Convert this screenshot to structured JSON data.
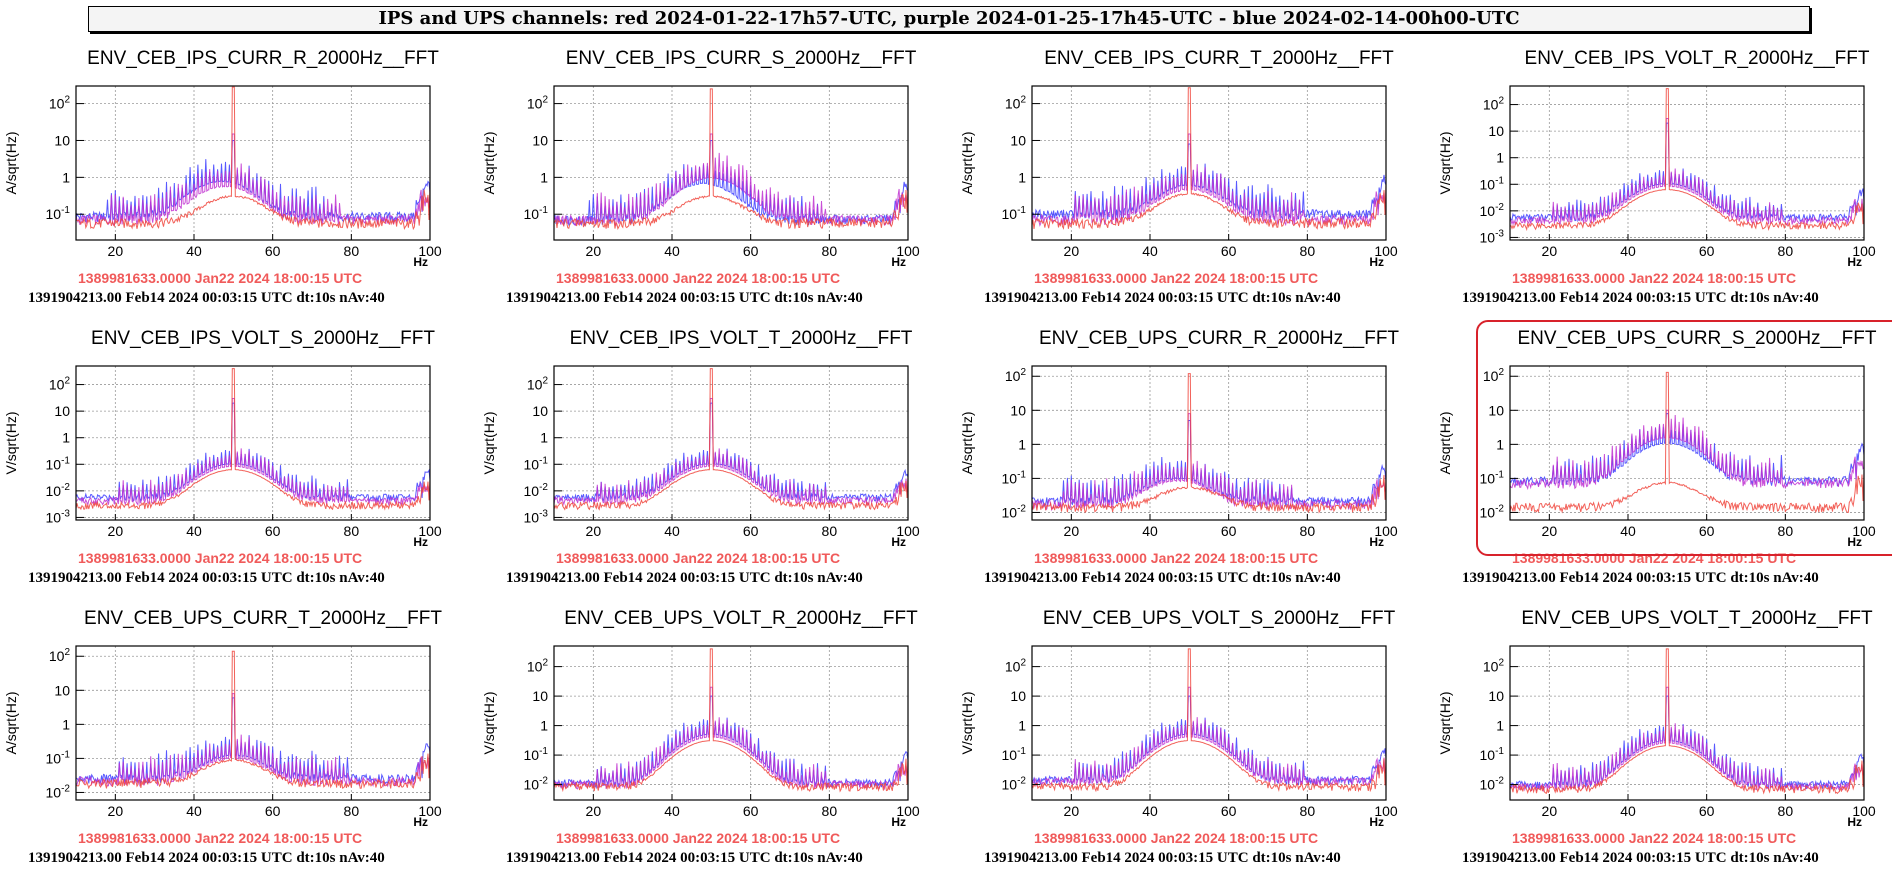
{
  "banner": "IPS and UPS channels: red 2024-01-22-17h57-UTC, purple 2024-01-25-17h45-UTC - blue 2024-02-14-00h00-UTC",
  "colors": {
    "red": "#f0453c",
    "blue": "#3c3cff",
    "purple": "#c030d0",
    "grid": "#9a9a9a",
    "highlight": "#d8222b",
    "footer_red": "#f05a5a"
  },
  "panel_footer": {
    "red": "1389981633.0000 Jan22 2024 18:00:15 UTC",
    "black": "1391904213.00 Feb14 2024 00:03:15 UTC dt:10s nAv:40"
  },
  "chart_data": [
    {
      "type": "line",
      "title": "ENV_CEB_IPS_CURR_R_2000Hz__FFT",
      "ylabel": "A/sqrt(Hz)",
      "xlabel": "Hz",
      "log_y": true,
      "xlim": [
        10,
        100
      ],
      "ylim": [
        0.02,
        300
      ],
      "x_ticks": [
        20,
        40,
        60,
        80,
        100
      ],
      "y_ticks": [
        "10^-1",
        "1",
        "10",
        "10^2"
      ],
      "grid": true,
      "peak_x": 50,
      "series": [
        {
          "color": "blue",
          "baseline": 0.06,
          "hump_x": 47,
          "hump_peak": 0.7,
          "peak": 10
        },
        {
          "color": "purple",
          "baseline": 0.05,
          "hump_x": 48,
          "hump_peak": 0.5,
          "peak": 15
        },
        {
          "color": "red",
          "baseline": 0.04,
          "hump_x": 50,
          "hump_peak": 0.25,
          "peak": 280
        }
      ]
    },
    {
      "type": "line",
      "title": "ENV_CEB_IPS_CURR_S_2000Hz__FFT",
      "ylabel": "A/sqrt(Hz)",
      "xlabel": "Hz",
      "log_y": true,
      "xlim": [
        10,
        100
      ],
      "ylim": [
        0.02,
        300
      ],
      "x_ticks": [
        20,
        40,
        60,
        80,
        100
      ],
      "y_ticks": [
        "10^-1",
        "1",
        "10",
        "10^2"
      ],
      "grid": true,
      "peak_x": 50,
      "series": [
        {
          "color": "blue",
          "baseline": 0.05,
          "hump_x": 48,
          "hump_peak": 0.6,
          "peak": 10
        },
        {
          "color": "purple",
          "baseline": 0.05,
          "hump_x": 50,
          "hump_peak": 0.9,
          "peak": 15
        },
        {
          "color": "red",
          "baseline": 0.04,
          "hump_x": 50,
          "hump_peak": 0.25,
          "peak": 250
        }
      ]
    },
    {
      "type": "line",
      "title": "ENV_CEB_IPS_CURR_T_2000Hz__FFT",
      "ylabel": "A/sqrt(Hz)",
      "xlabel": "Hz",
      "log_y": true,
      "xlim": [
        10,
        100
      ],
      "ylim": [
        0.02,
        300
      ],
      "x_ticks": [
        20,
        40,
        60,
        80,
        100
      ],
      "y_ticks": [
        "10^-1",
        "1",
        "10",
        "10^2"
      ],
      "grid": true,
      "peak_x": 50,
      "series": [
        {
          "color": "blue",
          "baseline": 0.07,
          "hump_x": 50,
          "hump_peak": 0.5,
          "peak": 8
        },
        {
          "color": "purple",
          "baseline": 0.05,
          "hump_x": 50,
          "hump_peak": 0.4,
          "peak": 15
        },
        {
          "color": "red",
          "baseline": 0.04,
          "hump_x": 50,
          "hump_peak": 0.3,
          "peak": 270
        }
      ]
    },
    {
      "type": "line",
      "title": "ENV_CEB_IPS_VOLT_R_2000Hz__FFT",
      "ylabel": "V/sqrt(Hz)",
      "xlabel": "Hz",
      "log_y": true,
      "xlim": [
        10,
        100
      ],
      "ylim": [
        0.0008,
        500
      ],
      "x_ticks": [
        20,
        40,
        60,
        80,
        100
      ],
      "y_ticks": [
        "10^-3",
        "10^-2",
        "10^-1",
        "1",
        "10",
        "10^2"
      ],
      "grid": true,
      "peak_x": 50,
      "series": [
        {
          "color": "blue",
          "baseline": 0.004,
          "hump_x": 50,
          "hump_peak": 0.1,
          "peak": 20
        },
        {
          "color": "purple",
          "baseline": 0.003,
          "hump_x": 50,
          "hump_peak": 0.08,
          "peak": 30
        },
        {
          "color": "red",
          "baseline": 0.002,
          "hump_x": 50,
          "hump_peak": 0.06,
          "peak": 400
        }
      ]
    },
    {
      "type": "line",
      "title": "ENV_CEB_IPS_VOLT_S_2000Hz__FFT",
      "ylabel": "V/sqrt(Hz)",
      "xlabel": "Hz",
      "log_y": true,
      "xlim": [
        10,
        100
      ],
      "ylim": [
        0.0008,
        500
      ],
      "x_ticks": [
        20,
        40,
        60,
        80,
        100
      ],
      "y_ticks": [
        "10^-3",
        "10^-2",
        "10^-1",
        "1",
        "10",
        "10^2"
      ],
      "grid": true,
      "peak_x": 50,
      "series": [
        {
          "color": "blue",
          "baseline": 0.004,
          "hump_x": 50,
          "hump_peak": 0.1,
          "peak": 20
        },
        {
          "color": "purple",
          "baseline": 0.003,
          "hump_x": 50,
          "hump_peak": 0.08,
          "peak": 30
        },
        {
          "color": "red",
          "baseline": 0.002,
          "hump_x": 50,
          "hump_peak": 0.06,
          "peak": 400
        }
      ]
    },
    {
      "type": "line",
      "title": "ENV_CEB_IPS_VOLT_T_2000Hz__FFT",
      "ylabel": "V/sqrt(Hz)",
      "xlabel": "Hz",
      "log_y": true,
      "xlim": [
        10,
        100
      ],
      "ylim": [
        0.0008,
        500
      ],
      "x_ticks": [
        20,
        40,
        60,
        80,
        100
      ],
      "y_ticks": [
        "10^-3",
        "10^-2",
        "10^-1",
        "1",
        "10",
        "10^2"
      ],
      "grid": true,
      "peak_x": 50,
      "series": [
        {
          "color": "blue",
          "baseline": 0.004,
          "hump_x": 50,
          "hump_peak": 0.1,
          "peak": 20
        },
        {
          "color": "purple",
          "baseline": 0.003,
          "hump_x": 50,
          "hump_peak": 0.08,
          "peak": 30
        },
        {
          "color": "red",
          "baseline": 0.002,
          "hump_x": 50,
          "hump_peak": 0.06,
          "peak": 400
        }
      ]
    },
    {
      "type": "line",
      "title": "ENV_CEB_UPS_CURR_R_2000Hz__FFT",
      "ylabel": "A/sqrt(Hz)",
      "xlabel": "Hz",
      "log_y": true,
      "xlim": [
        10,
        100
      ],
      "ylim": [
        0.006,
        200
      ],
      "x_ticks": [
        20,
        40,
        60,
        80,
        100
      ],
      "y_ticks": [
        "10^-2",
        "10^-1",
        "1",
        "10",
        "10^2"
      ],
      "grid": true,
      "peak_x": 50,
      "series": [
        {
          "color": "blue",
          "baseline": 0.015,
          "hump_x": 47,
          "hump_peak": 0.08,
          "peak": 5
        },
        {
          "color": "purple",
          "baseline": 0.012,
          "hump_x": 47,
          "hump_peak": 0.07,
          "peak": 8
        },
        {
          "color": "red",
          "baseline": 0.01,
          "hump_x": 50,
          "hump_peak": 0.04,
          "peak": 120
        }
      ]
    },
    {
      "type": "line",
      "title": "ENV_CEB_UPS_CURR_S_2000Hz__FFT",
      "ylabel": "A/sqrt(Hz)",
      "xlabel": "Hz",
      "log_y": true,
      "xlim": [
        10,
        100
      ],
      "ylim": [
        0.006,
        200
      ],
      "x_ticks": [
        20,
        40,
        60,
        80,
        100
      ],
      "y_ticks": [
        "10^-2",
        "10^-1",
        "1",
        "10",
        "10^2"
      ],
      "grid": true,
      "peak_x": 50,
      "series": [
        {
          "color": "blue",
          "baseline": 0.06,
          "hump_x": 50,
          "hump_peak": 1.0,
          "peak": 8
        },
        {
          "color": "purple",
          "baseline": 0.05,
          "hump_x": 50,
          "hump_peak": 1.5,
          "peak": 10
        },
        {
          "color": "red",
          "baseline": 0.01,
          "hump_x": 50,
          "hump_peak": 0.06,
          "peak": 130
        }
      ]
    },
    {
      "type": "line",
      "title": "ENV_CEB_UPS_CURR_T_2000Hz__FFT",
      "ylabel": "A/sqrt(Hz)",
      "xlabel": "Hz",
      "log_y": true,
      "xlim": [
        10,
        100
      ],
      "ylim": [
        0.006,
        200
      ],
      "x_ticks": [
        20,
        40,
        60,
        80,
        100
      ],
      "y_ticks": [
        "10^-2",
        "10^-1",
        "1",
        "10",
        "10^2"
      ],
      "grid": true,
      "peak_x": 50,
      "series": [
        {
          "color": "blue",
          "baseline": 0.018,
          "hump_x": 50,
          "hump_peak": 0.1,
          "peak": 6
        },
        {
          "color": "purple",
          "baseline": 0.015,
          "hump_x": 50,
          "hump_peak": 0.08,
          "peak": 8
        },
        {
          "color": "red",
          "baseline": 0.013,
          "hump_x": 50,
          "hump_peak": 0.07,
          "peak": 140
        }
      ]
    },
    {
      "type": "line",
      "title": "ENV_CEB_UPS_VOLT_R_2000Hz__FFT",
      "ylabel": "V/sqrt(Hz)",
      "xlabel": "Hz",
      "log_y": true,
      "xlim": [
        10,
        100
      ],
      "ylim": [
        0.003,
        500
      ],
      "x_ticks": [
        20,
        40,
        60,
        80,
        100
      ],
      "y_ticks": [
        "10^-2",
        "10^-1",
        "1",
        "10",
        "10^2"
      ],
      "grid": true,
      "peak_x": 50,
      "series": [
        {
          "color": "blue",
          "baseline": 0.008,
          "hump_x": 50,
          "hump_peak": 0.5,
          "peak": 10
        },
        {
          "color": "purple",
          "baseline": 0.007,
          "hump_x": 50,
          "hump_peak": 0.4,
          "peak": 20
        },
        {
          "color": "red",
          "baseline": 0.006,
          "hump_x": 50,
          "hump_peak": 0.3,
          "peak": 400
        }
      ]
    },
    {
      "type": "line",
      "title": "ENV_CEB_UPS_VOLT_S_2000Hz__FFT",
      "ylabel": "V/sqrt(Hz)",
      "xlabel": "Hz",
      "log_y": true,
      "xlim": [
        10,
        100
      ],
      "ylim": [
        0.003,
        500
      ],
      "x_ticks": [
        20,
        40,
        60,
        80,
        100
      ],
      "y_ticks": [
        "10^-2",
        "10^-1",
        "1",
        "10",
        "10^2"
      ],
      "grid": true,
      "peak_x": 50,
      "series": [
        {
          "color": "blue",
          "baseline": 0.01,
          "hump_x": 50,
          "hump_peak": 0.5,
          "peak": 10
        },
        {
          "color": "purple",
          "baseline": 0.009,
          "hump_x": 50,
          "hump_peak": 0.4,
          "peak": 20
        },
        {
          "color": "red",
          "baseline": 0.006,
          "hump_x": 50,
          "hump_peak": 0.3,
          "peak": 400
        }
      ]
    },
    {
      "type": "line",
      "title": "ENV_CEB_UPS_VOLT_T_2000Hz__FFT",
      "ylabel": "V/sqrt(Hz)",
      "xlabel": "Hz",
      "log_y": true,
      "xlim": [
        10,
        100
      ],
      "ylim": [
        0.003,
        500
      ],
      "x_ticks": [
        20,
        40,
        60,
        80,
        100
      ],
      "y_ticks": [
        "10^-2",
        "10^-1",
        "1",
        "10",
        "10^2"
      ],
      "grid": true,
      "peak_x": 50,
      "series": [
        {
          "color": "blue",
          "baseline": 0.007,
          "hump_x": 50,
          "hump_peak": 0.3,
          "peak": 10
        },
        {
          "color": "purple",
          "baseline": 0.006,
          "hump_x": 50,
          "hump_peak": 0.25,
          "peak": 20
        },
        {
          "color": "red",
          "baseline": 0.005,
          "hump_x": 50,
          "hump_peak": 0.2,
          "peak": 400
        }
      ]
    }
  ],
  "highlighted_panel": 7
}
